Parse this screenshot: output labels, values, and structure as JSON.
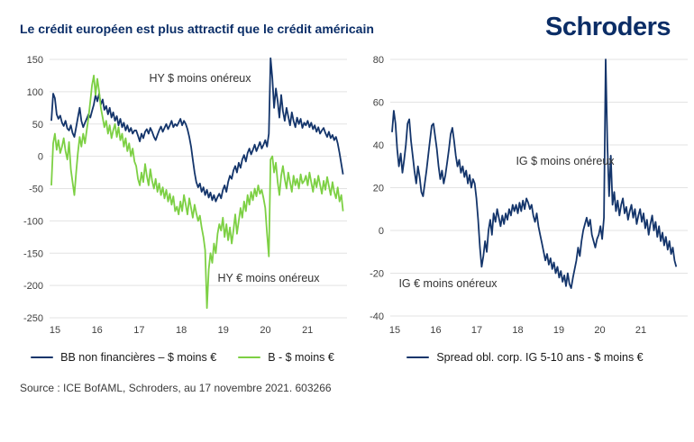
{
  "header": {
    "title": "Le crédit européen est plus attractif que le crédit américain",
    "logo": "Schroders"
  },
  "footer": {
    "source": "Source : ICE BofAML, Schroders, au 17 novembre 2021. 603266"
  },
  "colors": {
    "navy": "#14356B",
    "green": "#7DD044",
    "title_navy": "#0B2E68",
    "grid": "#E3E3E3",
    "axis_text": "#404040"
  },
  "chart_data": [
    {
      "type": "line",
      "name": "hy-credit-spread-chart",
      "x_start": 2015.0,
      "x_step": 0.042,
      "xlabel": "",
      "ylabel": "",
      "ylim": [
        -250,
        150
      ],
      "yticks": [
        150,
        100,
        50,
        0,
        -50,
        -100,
        -150,
        -200,
        -250
      ],
      "xticks": [
        "15",
        "16",
        "17",
        "18",
        "19",
        "20",
        "21"
      ],
      "grid": "horizontal",
      "legend_position": "bottom",
      "annotations": [
        {
          "text": "HY $ moins onéreux"
        },
        {
          "text": "HY € moins onéreux"
        }
      ],
      "series": [
        {
          "name": "BB-non-financieres",
          "label": "BB non financières – $ moins €",
          "color": "#14356B",
          "values": [
            55,
            97,
            90,
            65,
            58,
            63,
            52,
            47,
            55,
            43,
            40,
            48,
            36,
            30,
            45,
            60,
            75,
            55,
            45,
            52,
            58,
            65,
            60,
            70,
            80,
            95,
            85,
            97,
            80,
            88,
            72,
            78,
            65,
            75,
            60,
            68,
            55,
            62,
            48,
            58,
            45,
            52,
            40,
            48,
            38,
            44,
            35,
            40,
            40,
            32,
            23,
            35,
            28,
            38,
            42,
            35,
            44,
            38,
            30,
            25,
            33,
            40,
            46,
            38,
            44,
            50,
            42,
            48,
            55,
            45,
            50,
            47,
            52,
            58,
            48,
            55,
            50,
            42,
            30,
            15,
            -5,
            -25,
            -40,
            -48,
            -42,
            -55,
            -48,
            -60,
            -52,
            -64,
            -56,
            -68,
            -60,
            -70,
            -63,
            -58,
            -65,
            -52,
            -45,
            -55,
            -40,
            -30,
            -35,
            -22,
            -15,
            -25,
            -10,
            -18,
            -5,
            2,
            -8,
            5,
            12,
            3,
            10,
            18,
            8,
            15,
            22,
            12,
            18,
            25,
            15,
            35,
            152,
            120,
            75,
            105,
            85,
            60,
            95,
            70,
            55,
            75,
            62,
            48,
            68,
            55,
            45,
            60,
            50,
            58,
            44,
            52,
            48,
            55,
            45,
            52,
            42,
            48,
            38,
            45,
            35,
            40,
            44,
            36,
            30,
            38,
            28,
            33,
            25,
            30,
            20,
            5,
            -12,
            -28
          ]
        },
        {
          "name": "B",
          "label": "B - $ moins €",
          "color": "#7DD044",
          "values": [
            -45,
            20,
            35,
            10,
            25,
            5,
            15,
            28,
            8,
            -5,
            22,
            -20,
            -40,
            -60,
            -25,
            5,
            30,
            15,
            35,
            20,
            40,
            60,
            85,
            110,
            125,
            95,
            120,
            100,
            75,
            60,
            45,
            55,
            35,
            48,
            28,
            40,
            50,
            30,
            45,
            25,
            35,
            15,
            28,
            8,
            20,
            0,
            12,
            -8,
            -15,
            -35,
            -45,
            -25,
            -40,
            -12,
            -30,
            -45,
            -20,
            -38,
            -50,
            -35,
            -55,
            -42,
            -60,
            -48,
            -65,
            -52,
            -70,
            -58,
            -75,
            -62,
            -85,
            -78,
            -90,
            -70,
            -85,
            -60,
            -75,
            -90,
            -65,
            -80,
            -95,
            -75,
            -88,
            -100,
            -92,
            -110,
            -125,
            -145,
            -235,
            -175,
            -150,
            -165,
            -135,
            -150,
            -120,
            -105,
            -115,
            -95,
            -125,
            -105,
            -130,
            -110,
            -135,
            -115,
            -90,
            -120,
            -100,
            -80,
            -95,
            -70,
            -85,
            -60,
            -75,
            -55,
            -68,
            -50,
            -62,
            -45,
            -58,
            -52,
            -65,
            -80,
            -120,
            -155,
            -5,
            0,
            -25,
            -10,
            -40,
            -60,
            -30,
            -15,
            -35,
            -50,
            -25,
            -40,
            -55,
            -30,
            -45,
            -35,
            -50,
            -28,
            -42,
            -38,
            -30,
            -45,
            -25,
            -40,
            -55,
            -35,
            -48,
            -30,
            -44,
            -58,
            -38,
            -52,
            -32,
            -46,
            -60,
            -40,
            -55,
            -65,
            -48,
            -70,
            -60,
            -85
          ]
        }
      ]
    },
    {
      "type": "line",
      "name": "ig-credit-spread-chart",
      "x_start": 2015.0,
      "x_step": 0.042,
      "xlabel": "",
      "ylabel": "",
      "ylim": [
        -40,
        80
      ],
      "yticks": [
        80,
        60,
        40,
        20,
        0,
        -20,
        -40
      ],
      "xticks": [
        "15",
        "16",
        "17",
        "18",
        "19",
        "20",
        "21"
      ],
      "grid": "horizontal",
      "legend_position": "bottom",
      "annotations": [
        {
          "text": "IG $ moins onéreux"
        },
        {
          "text": "IG € moins onéreux"
        }
      ],
      "series": [
        {
          "name": "IG-spread",
          "label": "Spread obl. corp. IG 5-10 ans - $ moins €",
          "color": "#14356B",
          "values": [
            46,
            56,
            50,
            38,
            30,
            36,
            27,
            33,
            40,
            50,
            52,
            42,
            35,
            28,
            22,
            30,
            25,
            18,
            16,
            22,
            28,
            35,
            42,
            49,
            50,
            44,
            38,
            30,
            24,
            28,
            22,
            26,
            32,
            38,
            45,
            48,
            42,
            35,
            30,
            33,
            27,
            30,
            25,
            28,
            22,
            26,
            20,
            24,
            22,
            15,
            5,
            -8,
            -17,
            -12,
            -5,
            -10,
            0,
            5,
            -2,
            8,
            4,
            10,
            6,
            2,
            7,
            3,
            8,
            5,
            10,
            7,
            12,
            9,
            12,
            8,
            13,
            9,
            14,
            10,
            15,
            13,
            10,
            12,
            7,
            4,
            8,
            2,
            -2,
            -6,
            -10,
            -14,
            -11,
            -16,
            -13,
            -18,
            -15,
            -20,
            -17,
            -22,
            -19,
            -24,
            -21,
            -26,
            -20,
            -25,
            -27,
            -22,
            -18,
            -14,
            -8,
            -12,
            -5,
            0,
            3,
            6,
            2,
            5,
            -2,
            -5,
            -8,
            -4,
            -2,
            2,
            -4,
            6,
            80,
            40,
            16,
            35,
            12,
            18,
            9,
            14,
            7,
            12,
            15,
            8,
            11,
            5,
            9,
            12,
            6,
            10,
            3,
            7,
            10,
            4,
            8,
            1,
            5,
            -2,
            3,
            7,
            0,
            4,
            -3,
            2,
            -5,
            -1,
            -7,
            -3,
            -9,
            -5,
            -11,
            -8,
            -14,
            -17
          ]
        }
      ]
    }
  ]
}
